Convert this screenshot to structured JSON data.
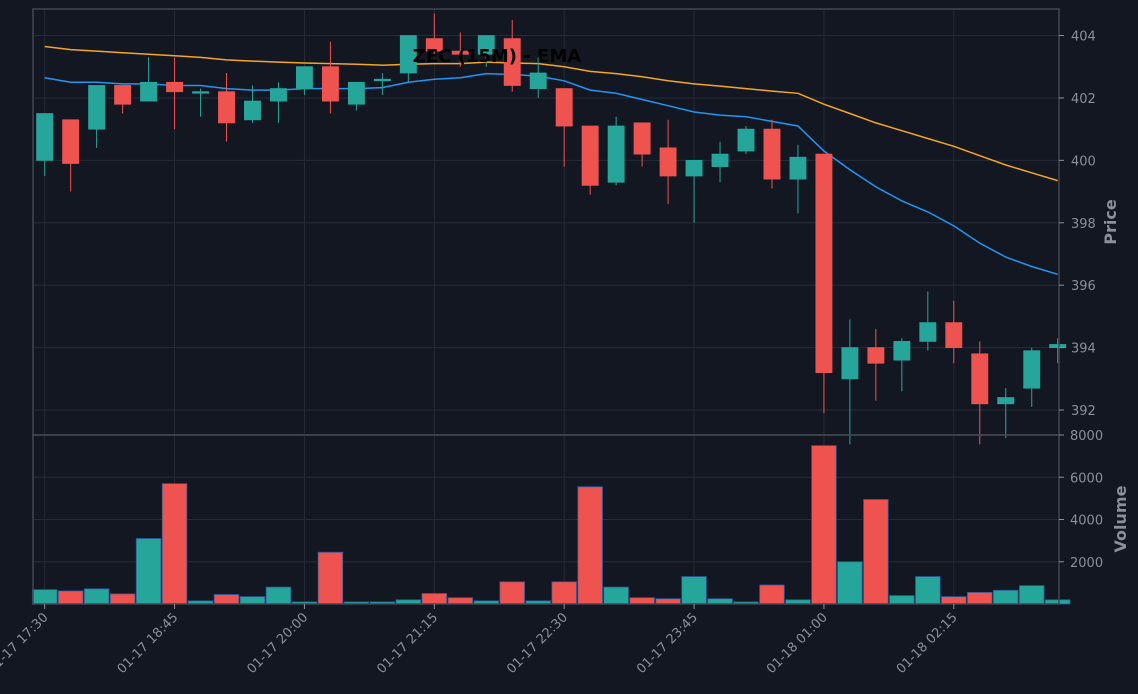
{
  "chart_data": [
    {
      "type": "candlestick",
      "title": "ZEC (15M) - EMA",
      "ylabel": "Price",
      "ylim": [
        391.2,
        404.85
      ],
      "yticks": [
        392,
        394,
        396,
        398,
        400,
        402,
        404
      ],
      "x": [
        "01-17 17:30",
        "01-17 17:45",
        "01-17 18:00",
        "01-17 18:15",
        "01-17 18:30",
        "01-17 18:45",
        "01-17 19:00",
        "01-17 19:15",
        "01-17 19:30",
        "01-17 19:45",
        "01-17 20:00",
        "01-17 20:15",
        "01-17 20:30",
        "01-17 20:45",
        "01-17 21:00",
        "01-17 21:15",
        "01-17 21:30",
        "01-17 21:45",
        "01-17 22:00",
        "01-17 22:15",
        "01-17 22:30",
        "01-17 22:45",
        "01-17 23:00",
        "01-17 23:15",
        "01-17 23:30",
        "01-17 23:45",
        "01-18 00:00",
        "01-18 00:15",
        "01-18 00:30",
        "01-18 00:45",
        "01-18 01:00",
        "01-18 01:15",
        "01-18 01:30",
        "01-18 01:45",
        "01-18 02:00",
        "01-18 02:15",
        "01-18 02:30",
        "01-18 02:45",
        "01-18 03:00",
        "01-18 03:15"
      ],
      "xtick_labels": [
        "01-17 17:30",
        "01-17 18:45",
        "01-17 20:00",
        "01-17 21:15",
        "01-17 22:30",
        "01-17 23:45",
        "01-18 01:00",
        "01-18 02:15"
      ],
      "candles": [
        {
          "o": 400.0,
          "h": 401.5,
          "l": 399.5,
          "c": 401.5
        },
        {
          "o": 401.3,
          "h": 401.3,
          "l": 399.0,
          "c": 399.9
        },
        {
          "o": 401.0,
          "h": 402.4,
          "l": 400.4,
          "c": 402.4
        },
        {
          "o": 402.4,
          "h": 402.4,
          "l": 401.5,
          "c": 401.8
        },
        {
          "o": 401.9,
          "h": 403.3,
          "l": 401.9,
          "c": 402.5
        },
        {
          "o": 402.5,
          "h": 403.3,
          "l": 401.0,
          "c": 402.2
        },
        {
          "o": 402.2,
          "h": 402.3,
          "l": 401.4,
          "c": 402.2
        },
        {
          "o": 402.2,
          "h": 402.8,
          "l": 400.6,
          "c": 401.2
        },
        {
          "o": 401.3,
          "h": 402.4,
          "l": 401.2,
          "c": 401.9
        },
        {
          "o": 401.9,
          "h": 402.5,
          "l": 401.2,
          "c": 402.3
        },
        {
          "o": 402.3,
          "h": 403.0,
          "l": 402.1,
          "c": 403.0
        },
        {
          "o": 403.0,
          "h": 403.8,
          "l": 401.5,
          "c": 401.9
        },
        {
          "o": 401.8,
          "h": 402.5,
          "l": 401.6,
          "c": 402.5
        },
        {
          "o": 402.6,
          "h": 402.8,
          "l": 402.1,
          "c": 402.6
        },
        {
          "o": 402.8,
          "h": 404.0,
          "l": 402.5,
          "c": 404.0
        },
        {
          "o": 403.9,
          "h": 404.7,
          "l": 403.4,
          "c": 403.5
        },
        {
          "o": 403.5,
          "h": 404.1,
          "l": 403.0,
          "c": 403.4
        },
        {
          "o": 403.4,
          "h": 404.0,
          "l": 403.0,
          "c": 404.0
        },
        {
          "o": 403.9,
          "h": 404.5,
          "l": 402.2,
          "c": 402.4
        },
        {
          "o": 402.3,
          "h": 403.3,
          "l": 402.0,
          "c": 402.8
        },
        {
          "o": 402.3,
          "h": 402.3,
          "l": 399.8,
          "c": 401.1
        },
        {
          "o": 401.1,
          "h": 401.1,
          "l": 398.9,
          "c": 399.2
        },
        {
          "o": 399.3,
          "h": 401.4,
          "l": 399.2,
          "c": 401.1
        },
        {
          "o": 401.2,
          "h": 401.2,
          "l": 399.8,
          "c": 400.2
        },
        {
          "o": 400.4,
          "h": 401.3,
          "l": 398.6,
          "c": 399.5
        },
        {
          "o": 399.5,
          "h": 400.0,
          "l": 398.0,
          "c": 400.0
        },
        {
          "o": 399.8,
          "h": 400.6,
          "l": 399.3,
          "c": 400.2
        },
        {
          "o": 400.3,
          "h": 401.1,
          "l": 400.2,
          "c": 401.0
        },
        {
          "o": 401.0,
          "h": 401.3,
          "l": 399.1,
          "c": 399.4
        },
        {
          "o": 399.4,
          "h": 400.5,
          "l": 398.3,
          "c": 400.1
        },
        {
          "o": 400.2,
          "h": 400.2,
          "l": 391.9,
          "c": 393.2
        },
        {
          "o": 393.0,
          "h": 394.9,
          "l": 390.9,
          "c": 394.0
        },
        {
          "o": 394.0,
          "h": 394.6,
          "l": 392.3,
          "c": 393.5
        },
        {
          "o": 393.6,
          "h": 394.3,
          "l": 392.6,
          "c": 394.2
        },
        {
          "o": 394.2,
          "h": 395.8,
          "l": 393.9,
          "c": 394.8
        },
        {
          "o": 394.8,
          "h": 395.5,
          "l": 393.5,
          "c": 394.0
        },
        {
          "o": 393.8,
          "h": 394.2,
          "l": 390.9,
          "c": 392.2
        },
        {
          "o": 392.2,
          "h": 392.7,
          "l": 391.1,
          "c": 392.4
        },
        {
          "o": 392.7,
          "h": 394.0,
          "l": 392.1,
          "c": 393.9
        },
        {
          "o": 394.0,
          "h": 394.3,
          "l": 393.5,
          "c": 394.1
        }
      ],
      "ema_fast": [
        402.65,
        402.5,
        402.5,
        402.45,
        402.45,
        402.4,
        402.4,
        402.3,
        402.25,
        402.25,
        402.3,
        402.3,
        402.3,
        402.33,
        402.5,
        402.6,
        402.65,
        402.78,
        402.75,
        402.7,
        402.55,
        402.25,
        402.15,
        401.95,
        401.75,
        401.55,
        401.45,
        401.4,
        401.25,
        401.1,
        400.3,
        399.7,
        399.15,
        398.7,
        398.35,
        397.9,
        397.35,
        396.9,
        396.6,
        396.35
      ],
      "ema_slow": [
        403.65,
        403.55,
        403.5,
        403.45,
        403.4,
        403.35,
        403.3,
        403.22,
        403.18,
        403.15,
        403.12,
        403.1,
        403.08,
        403.05,
        403.08,
        403.1,
        403.1,
        403.15,
        403.12,
        403.1,
        403.0,
        402.85,
        402.78,
        402.68,
        402.55,
        402.45,
        402.38,
        402.3,
        402.22,
        402.15,
        401.8,
        401.5,
        401.2,
        400.95,
        400.7,
        400.45,
        400.15,
        399.85,
        399.6,
        399.35
      ],
      "ema_colors": {
        "fast": "#2196f3",
        "slow": "#f5a623"
      },
      "colors": {
        "up": "#26a69a",
        "down": "#ef5350",
        "background": "#131722",
        "grid": "#262b38",
        "axis_text": "#8a8f9c"
      }
    },
    {
      "type": "bar",
      "ylabel": "Volume",
      "ylim": [
        0,
        8000
      ],
      "yticks": [
        2000,
        4000,
        6000,
        8000
      ],
      "values": [
        680,
        620,
        720,
        480,
        3100,
        5700,
        150,
        450,
        350,
        800,
        100,
        2450,
        100,
        100,
        200,
        500,
        300,
        150,
        1050,
        150,
        1050,
        5550,
        800,
        300,
        250,
        1300,
        250,
        100,
        900,
        200,
        7500,
        2000,
        4950,
        400,
        1300,
        350,
        550,
        650,
        870,
        200
      ]
    }
  ]
}
